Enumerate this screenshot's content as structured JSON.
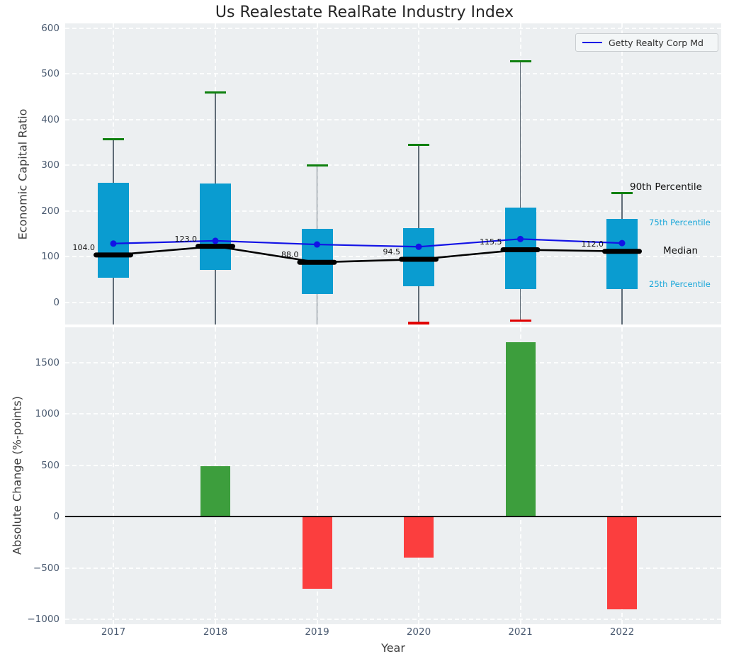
{
  "title": "Us Realestate RealRate Industry Index",
  "legend": {
    "label": "Getty Realty Corp Md"
  },
  "annotations": {
    "p90": "90th Percentile",
    "p75": "75th Percentile",
    "median": "Median",
    "p25": "25th Percentile"
  },
  "colors": {
    "plot_bg": "#eceff1",
    "box_fill": "#0a9cd0",
    "median_line": "#000000",
    "getty_line": "#1212e6",
    "whisker": "#5f6b76",
    "cap_high_green": "#0f800f",
    "cap_low_red": "#e00000",
    "bar_positive": "#3d9e3d",
    "bar_negative": "#fb3e3e",
    "tick_label": "#4a5a70",
    "percentile_label_cyan": "#1ba7d9"
  },
  "chart_data": [
    {
      "type": "boxplot",
      "title": "Us Realestate RealRate Industry Index",
      "ylabel": "Economic Capital Ratio",
      "categories": [
        "2017",
        "2018",
        "2019",
        "2020",
        "2021",
        "2022"
      ],
      "yticks": [
        0,
        100,
        200,
        300,
        400,
        500,
        600
      ],
      "ylim": [
        -48,
        611
      ],
      "grid": true,
      "legend_position": "upper right",
      "boxes": [
        {
          "year": "2017",
          "p90": 357,
          "p75": 262,
          "median": 104.0,
          "p25": 54,
          "p10": null,
          "median_label": "104.0"
        },
        {
          "year": "2018",
          "p90": 460,
          "p75": 260,
          "median": 123.0,
          "p25": 71,
          "p10": null,
          "median_label": "123.0"
        },
        {
          "year": "2019",
          "p90": 300,
          "p75": 161,
          "median": 88.0,
          "p25": 18,
          "p10": null,
          "median_label": "88.0"
        },
        {
          "year": "2020",
          "p90": 345,
          "p75": 163,
          "median": 94.5,
          "p25": 36,
          "p10": -45,
          "median_label": "94.5"
        },
        {
          "year": "2021",
          "p90": 528,
          "p75": 208,
          "median": 115.5,
          "p25": 30,
          "p10": -40,
          "median_label": "115.5"
        },
        {
          "year": "2022",
          "p90": 240,
          "p75": 183,
          "median": 112.0,
          "p25": 29,
          "p10": null,
          "median_label": "112.0"
        }
      ],
      "series": [
        {
          "name": "Getty Realty Corp Md",
          "values": [
            129,
            135,
            127,
            122,
            139,
            130
          ]
        }
      ]
    },
    {
      "type": "bar",
      "ylabel": "Absolute Change (%-points)",
      "xlabel": "Year",
      "categories": [
        "2017",
        "2018",
        "2019",
        "2020",
        "2021",
        "2022"
      ],
      "values": [
        0,
        490,
        -700,
        -400,
        1700,
        -900
      ],
      "yticks": [
        -1000,
        -500,
        0,
        500,
        1000,
        1500
      ],
      "ylim": [
        -1048,
        1840
      ],
      "grid": true
    }
  ]
}
